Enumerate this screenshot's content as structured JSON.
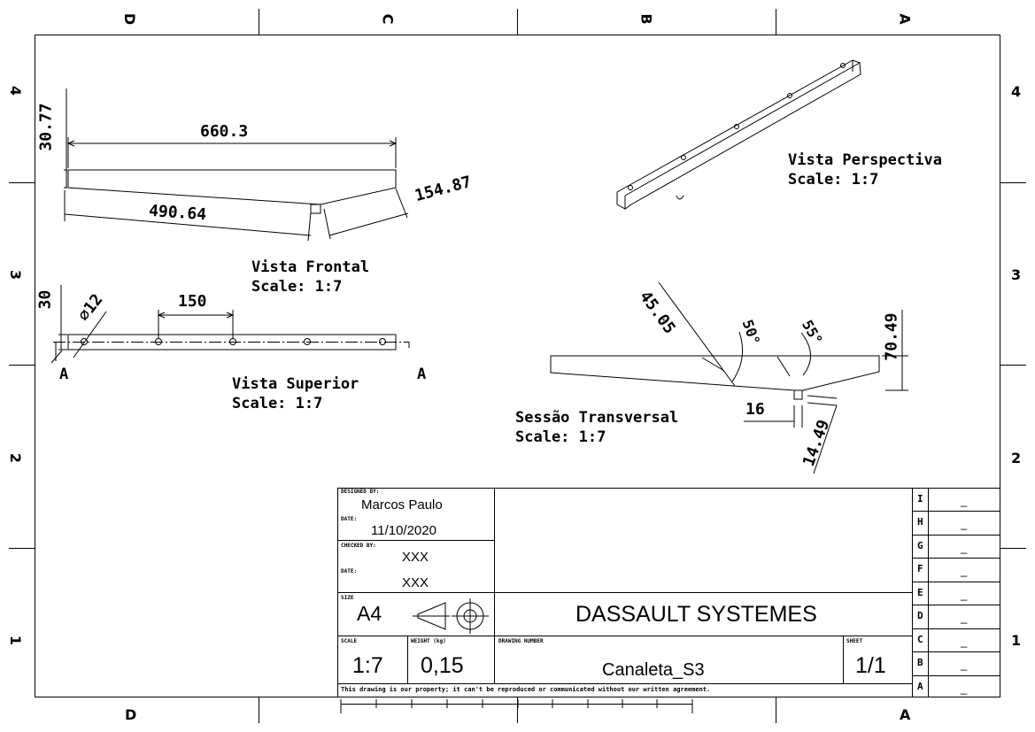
{
  "zones": {
    "top": [
      "D",
      "C",
      "B",
      "A"
    ],
    "bottom": [
      "D",
      "A"
    ],
    "left": [
      "4",
      "3",
      "2",
      "1"
    ],
    "right": [
      "4",
      "3",
      "2",
      "1"
    ]
  },
  "views": {
    "frontal": {
      "title": "Vista Frontal",
      "scale": "Scale:  1:7"
    },
    "superior": {
      "title": "Vista Superior",
      "scale": "Scale:  1:7"
    },
    "perspectiva": {
      "title": "Vista Perspectiva",
      "scale": "Scale:  1:7"
    },
    "sessao": {
      "title": "Sessão Transversal",
      "scale": "Scale:  1:7"
    }
  },
  "dimensions": {
    "frontal": {
      "height": "30.77",
      "length": "660.3",
      "bottom_left": "490.64",
      "bottom_right": "154.87"
    },
    "superior": {
      "width": "30",
      "diameter": "⌀12",
      "spacing": "150",
      "section_left": "A",
      "section_right": "A"
    },
    "sessao": {
      "slant": "45.05",
      "angle_left": "50°",
      "angle_right": "55°",
      "height": "70.49",
      "width_16": "16",
      "small": "14.49"
    }
  },
  "title_block": {
    "designed_by_label": "DESIGNED BY:",
    "designer": "Marcos Paulo",
    "date_label": "DATE:",
    "date": "11/10/2020",
    "checked_by_label": "CHECKED BY:",
    "checker": "XXX",
    "date2_label": "DATE:",
    "date2": "XXX",
    "size_label": "SIZE",
    "size": "A4",
    "company": "DASSAULT SYSTEMES",
    "scale_label": "SCALE",
    "scale": "1:7",
    "weight_label": "WEIGHT (kg)",
    "weight": "0,15",
    "drawing_number_label": "DRAWING NUMBER",
    "drawing_number": "Canaleta_S3",
    "sheet_label": "SHEET",
    "sheet": "1/1",
    "disclaimer": "This drawing is our property; it can't be reproduced or communicated without our written agreement.",
    "revisions": [
      {
        "letter": "I",
        "value": "_"
      },
      {
        "letter": "H",
        "value": "_"
      },
      {
        "letter": "G",
        "value": "_"
      },
      {
        "letter": "F",
        "value": "_"
      },
      {
        "letter": "E",
        "value": "_"
      },
      {
        "letter": "D",
        "value": "_"
      },
      {
        "letter": "C",
        "value": "_"
      },
      {
        "letter": "B",
        "value": "_"
      },
      {
        "letter": "A",
        "value": "_"
      }
    ]
  }
}
